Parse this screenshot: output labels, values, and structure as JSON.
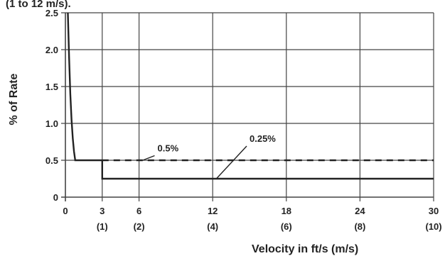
{
  "header": {
    "clipped_text": "(1 to 12 m/s)."
  },
  "chart_data": {
    "type": "line",
    "xlabel": "Velocity in ft/s (m/s)",
    "ylabel": "% of Rate",
    "xlim": [
      0,
      30
    ],
    "ylim": [
      0,
      2.5
    ],
    "grid": true,
    "x_ticks": [
      {
        "value": 0,
        "label": "0",
        "sublabel": ""
      },
      {
        "value": 3,
        "label": "3",
        "sublabel": "(1)"
      },
      {
        "value": 6,
        "label": "6",
        "sublabel": "(2)"
      },
      {
        "value": 12,
        "label": "12",
        "sublabel": "(4)"
      },
      {
        "value": 18,
        "label": "18",
        "sublabel": "(6)"
      },
      {
        "value": 24,
        "label": "24",
        "sublabel": "(8)"
      },
      {
        "value": 30,
        "label": "30",
        "sublabel": "(10)"
      }
    ],
    "y_ticks": [
      {
        "value": 0,
        "label": "0"
      },
      {
        "value": 0.5,
        "label": "0.5"
      },
      {
        "value": 1.0,
        "label": "1.0"
      },
      {
        "value": 1.5,
        "label": "1.5"
      },
      {
        "value": 2.0,
        "label": "2.0"
      },
      {
        "value": 2.5,
        "label": "2.5"
      }
    ],
    "series": [
      {
        "name": "0.5%",
        "style": "dashed",
        "x": [
          0.2,
          0.3,
          0.4,
          0.5,
          0.6,
          0.7,
          0.8,
          3,
          30
        ],
        "y": [
          2.5,
          1.9,
          1.4,
          1.05,
          0.8,
          0.62,
          0.5,
          0.5,
          0.5
        ],
        "dashed_from_x": 3
      },
      {
        "name": "0.25%",
        "style": "solid",
        "x": [
          3,
          3,
          30
        ],
        "y": [
          0.5,
          0.25,
          0.25
        ]
      }
    ],
    "annotations": [
      {
        "text": "0.5%",
        "x": 7.5,
        "y": 0.62,
        "leader_to": [
          6.3,
          0.5
        ]
      },
      {
        "text": "0.25%",
        "x": 15.0,
        "y": 0.75,
        "leader_to": [
          12.3,
          0.25
        ]
      }
    ],
    "colors": {
      "line": "#222222",
      "grid": "#444444",
      "background": "#ffffff"
    }
  }
}
